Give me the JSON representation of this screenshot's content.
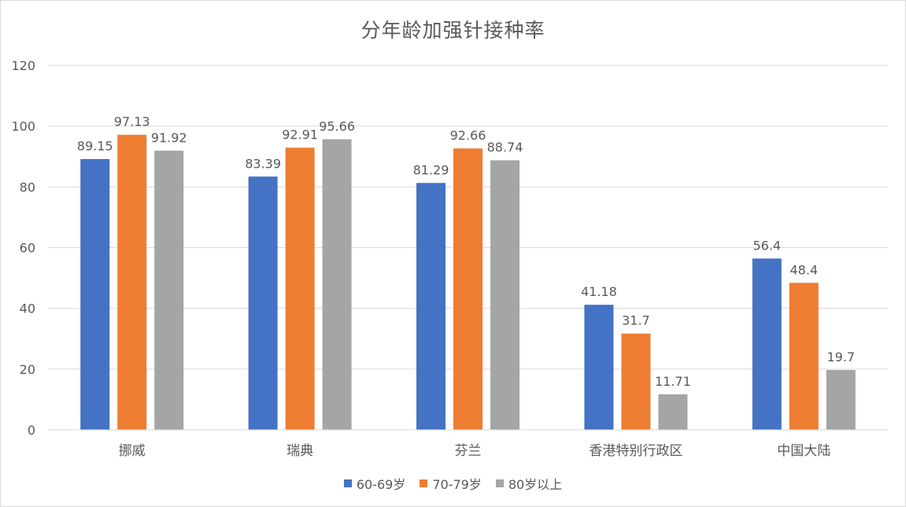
{
  "chart_data": {
    "type": "bar",
    "title": "分年龄加强针接种率",
    "categories": [
      "挪威",
      "瑞典",
      "芬兰",
      "香港特别行政区",
      "中国大陆"
    ],
    "series": [
      {
        "name": "60-69岁",
        "color": "#4472c4",
        "values": [
          89.15,
          83.39,
          81.29,
          41.18,
          56.4
        ],
        "labels": [
          "89.15",
          "83.39",
          "81.29",
          "41.18",
          "56.4"
        ]
      },
      {
        "name": "70-79岁",
        "color": "#ed7d31",
        "values": [
          97.13,
          92.91,
          92.66,
          31.7,
          48.4
        ],
        "labels": [
          "97.13",
          "92.91",
          "92.66",
          "31.7",
          "48.4"
        ]
      },
      {
        "name": "80岁以上",
        "color": "#a5a5a5",
        "values": [
          91.92,
          95.66,
          88.74,
          11.71,
          19.7
        ],
        "labels": [
          "91.92",
          "95.66",
          "88.74",
          "11.71",
          "19.7"
        ]
      }
    ],
    "ylim": [
      0,
      120
    ],
    "yticks": [
      "0",
      "20",
      "40",
      "60",
      "80",
      "100",
      "120"
    ],
    "grid": true,
    "legend_position": "bottom"
  }
}
